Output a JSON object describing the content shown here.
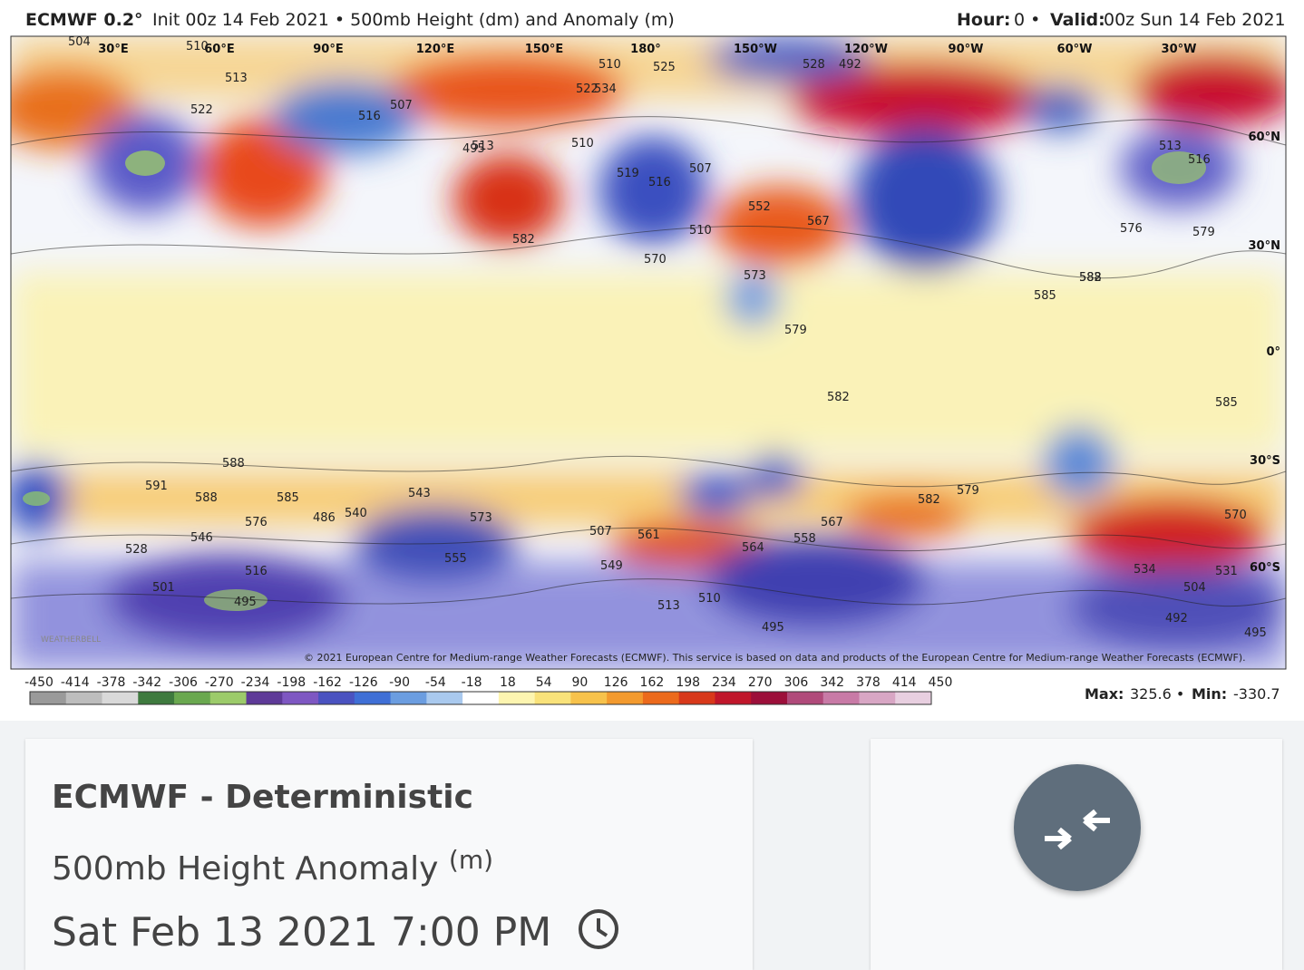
{
  "header": {
    "model": "ECMWF 0.2°",
    "init": "Init 00z 14 Feb 2021 • 500mb Height (dm) and Anomaly (m)",
    "hour_label": "Hour:",
    "hour": "0 •",
    "valid_label": "Valid:",
    "valid": "00z Sun 14 Feb 2021"
  },
  "map": {
    "longitudes": [
      "30°E",
      "60°E",
      "90°E",
      "120°E",
      "150°E",
      "180°",
      "150°W",
      "120°W",
      "90°W",
      "60°W",
      "30°W"
    ],
    "latitudes": [
      "60°N",
      "30°N",
      "0°",
      "30°S",
      "60°S"
    ],
    "contours": [
      "504",
      "510",
      "513",
      "522",
      "516",
      "507",
      "513",
      "510",
      "525",
      "522",
      "534",
      "528",
      "492",
      "495",
      "510",
      "519",
      "516",
      "507",
      "510",
      "552",
      "567",
      "582",
      "570",
      "573",
      "579",
      "582",
      "582",
      "585",
      "588",
      "585",
      "588",
      "591",
      "588",
      "585",
      "576",
      "546",
      "528",
      "516",
      "501",
      "495",
      "486",
      "540",
      "543",
      "573",
      "555",
      "507",
      "561",
      "564",
      "558",
      "549",
      "513",
      "510",
      "495",
      "567",
      "582",
      "579",
      "570",
      "534",
      "531",
      "504",
      "492",
      "495",
      "513",
      "516",
      "576",
      "579"
    ],
    "copyright": "© 2021 European Centre for Medium-range Weather Forecasts (ECMWF). This service is based on data and products of the European Centre for Medium-range Weather Forecasts (ECMWF).",
    "watermark": "WEATHERBELL"
  },
  "colorbar": {
    "ticks": [
      -450,
      -414,
      -378,
      -342,
      -306,
      -270,
      -234,
      -198,
      -162,
      -126,
      -90,
      -54,
      -18,
      18,
      54,
      90,
      126,
      162,
      198,
      234,
      270,
      306,
      342,
      378,
      414,
      450
    ]
  },
  "stats": {
    "max_label": "Max:",
    "max": "325.6 •",
    "min_label": "Min:",
    "min": "-330.7"
  },
  "card": {
    "title": "ECMWF - Deterministic",
    "subtitle": "500mb Height Anomaly",
    "unit": "(m)",
    "date": "Sat Feb 13 2021 7:00 PM"
  }
}
